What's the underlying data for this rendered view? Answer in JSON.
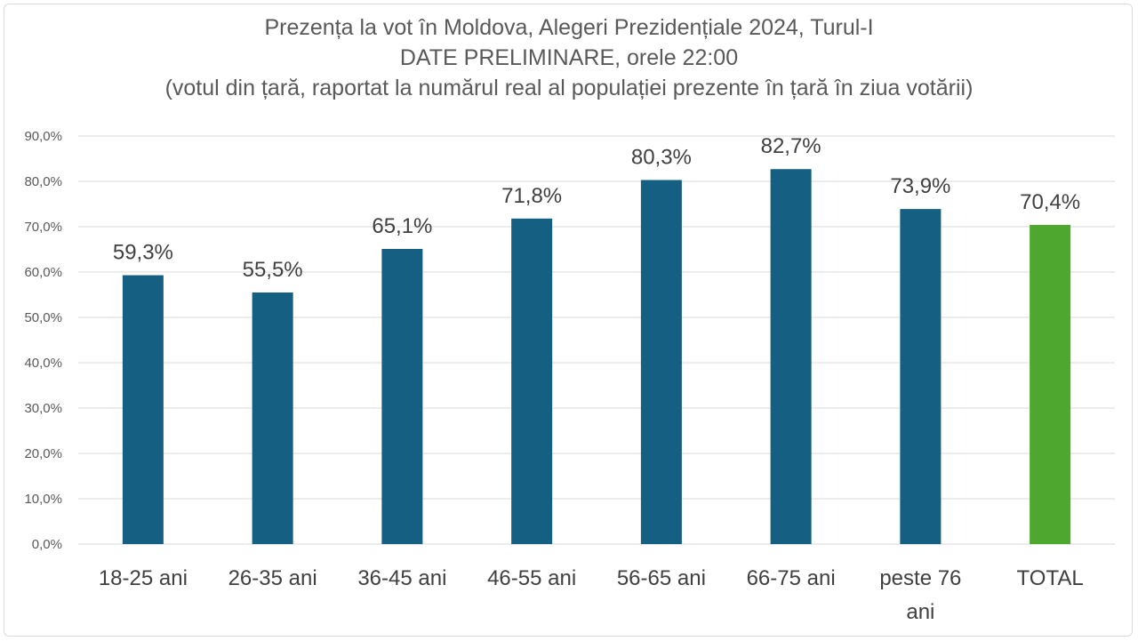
{
  "chart_data": {
    "type": "bar",
    "title": "Prezența la vot în Moldova, Alegeri Prezidențiale 2024, Turul-I",
    "subtitle": "DATE PRELIMINARE,  orele 22:00",
    "subtitle2": "(votul din țară, raportat la numărul real al populației prezente în țară în ziua votării)",
    "xlabel": "",
    "ylabel": "",
    "categories": [
      "18-25 ani",
      "26-35 ani",
      "36-45 ani",
      "46-55 ani",
      "56-65 ani",
      "66-75 ani",
      "peste 76 ani",
      "TOTAL"
    ],
    "values": [
      59.3,
      55.5,
      65.1,
      71.8,
      80.3,
      82.7,
      73.9,
      70.4
    ],
    "data_labels": [
      "59,3%",
      "55,5%",
      "65,1%",
      "71,8%",
      "80,3%",
      "82,7%",
      "73,9%",
      "70,4%"
    ],
    "ylim": [
      0,
      90
    ],
    "yticks": [
      0,
      10,
      20,
      30,
      40,
      50,
      60,
      70,
      80,
      90
    ],
    "ytick_labels": [
      "0,0%",
      "10,0%",
      "20,0%",
      "30,0%",
      "40,0%",
      "50,0%",
      "60,0%",
      "70,0%",
      "80,0%",
      "90,0%"
    ],
    "grid": true,
    "legend": "none",
    "colors": {
      "bar": "#156082",
      "total_bar": "#4ea72e",
      "grid": "#d9d9d9",
      "text": "#595959"
    }
  }
}
